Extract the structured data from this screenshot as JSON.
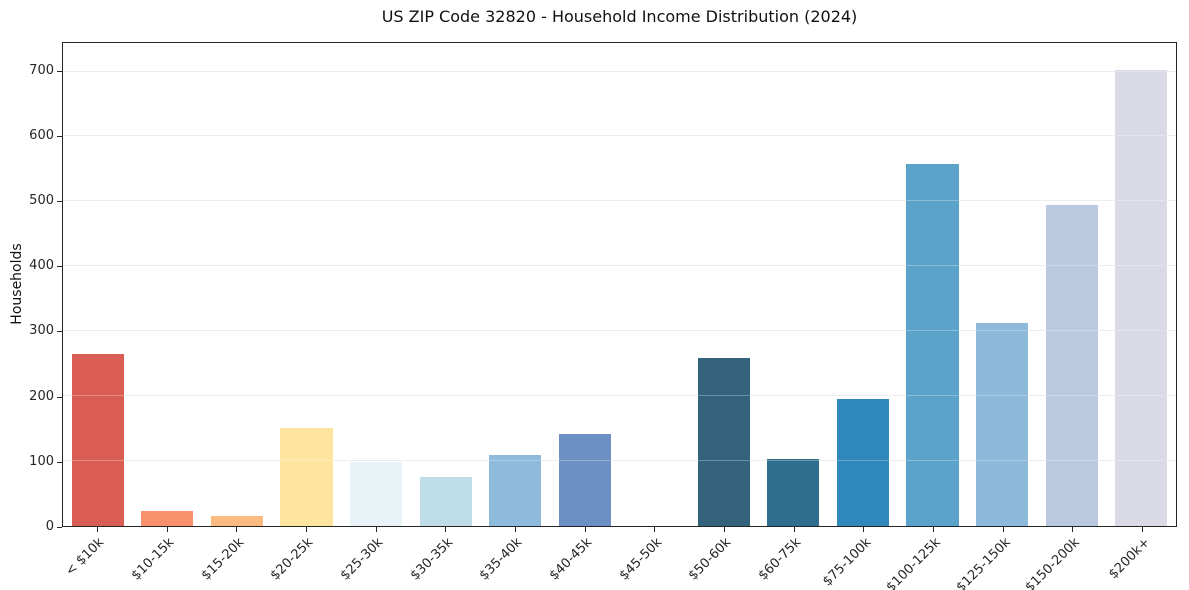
{
  "figure": {
    "background": "#ffffff",
    "spine_color": "#262626",
    "grid_color": "#e7e7e7",
    "text_color": "#262626"
  },
  "chart_data": {
    "type": "bar",
    "title": "US ZIP Code 32820 - Household Income Distribution (2024)",
    "xlabel": "",
    "ylabel": "Households",
    "categories": [
      "< $10k",
      "$10-15k",
      "$15-20k",
      "$20-25k",
      "$25-30k",
      "$30-35k",
      "$35-40k",
      "$40-45k",
      "$45-50k",
      "$50-60k",
      "$60-75k",
      "$75-100k",
      "$100-125k",
      "$125-150k",
      "$150-200k",
      "$200k+"
    ],
    "values": [
      265,
      23,
      15,
      151,
      99,
      75,
      109,
      142,
      0,
      259,
      103,
      195,
      558,
      313,
      495,
      702
    ],
    "bar_colors": [
      "#d95d53",
      "#f8906c",
      "#fbbb80",
      "#fde59f",
      "#e8f2f7",
      "#bedde9",
      "#8ebadc",
      "#6c90c3",
      "#ffffff",
      "#34627d",
      "#2f6e8e",
      "#2f87bb",
      "#5ba3cb",
      "#8db9da",
      "#bac9e0",
      "#d9dae6"
    ],
    "yticks": [
      0,
      100,
      200,
      300,
      400,
      500,
      600,
      700
    ],
    "ylim": [
      0,
      744
    ],
    "grid": "horizontal",
    "legend": null,
    "bar_width_fraction": 0.75
  }
}
